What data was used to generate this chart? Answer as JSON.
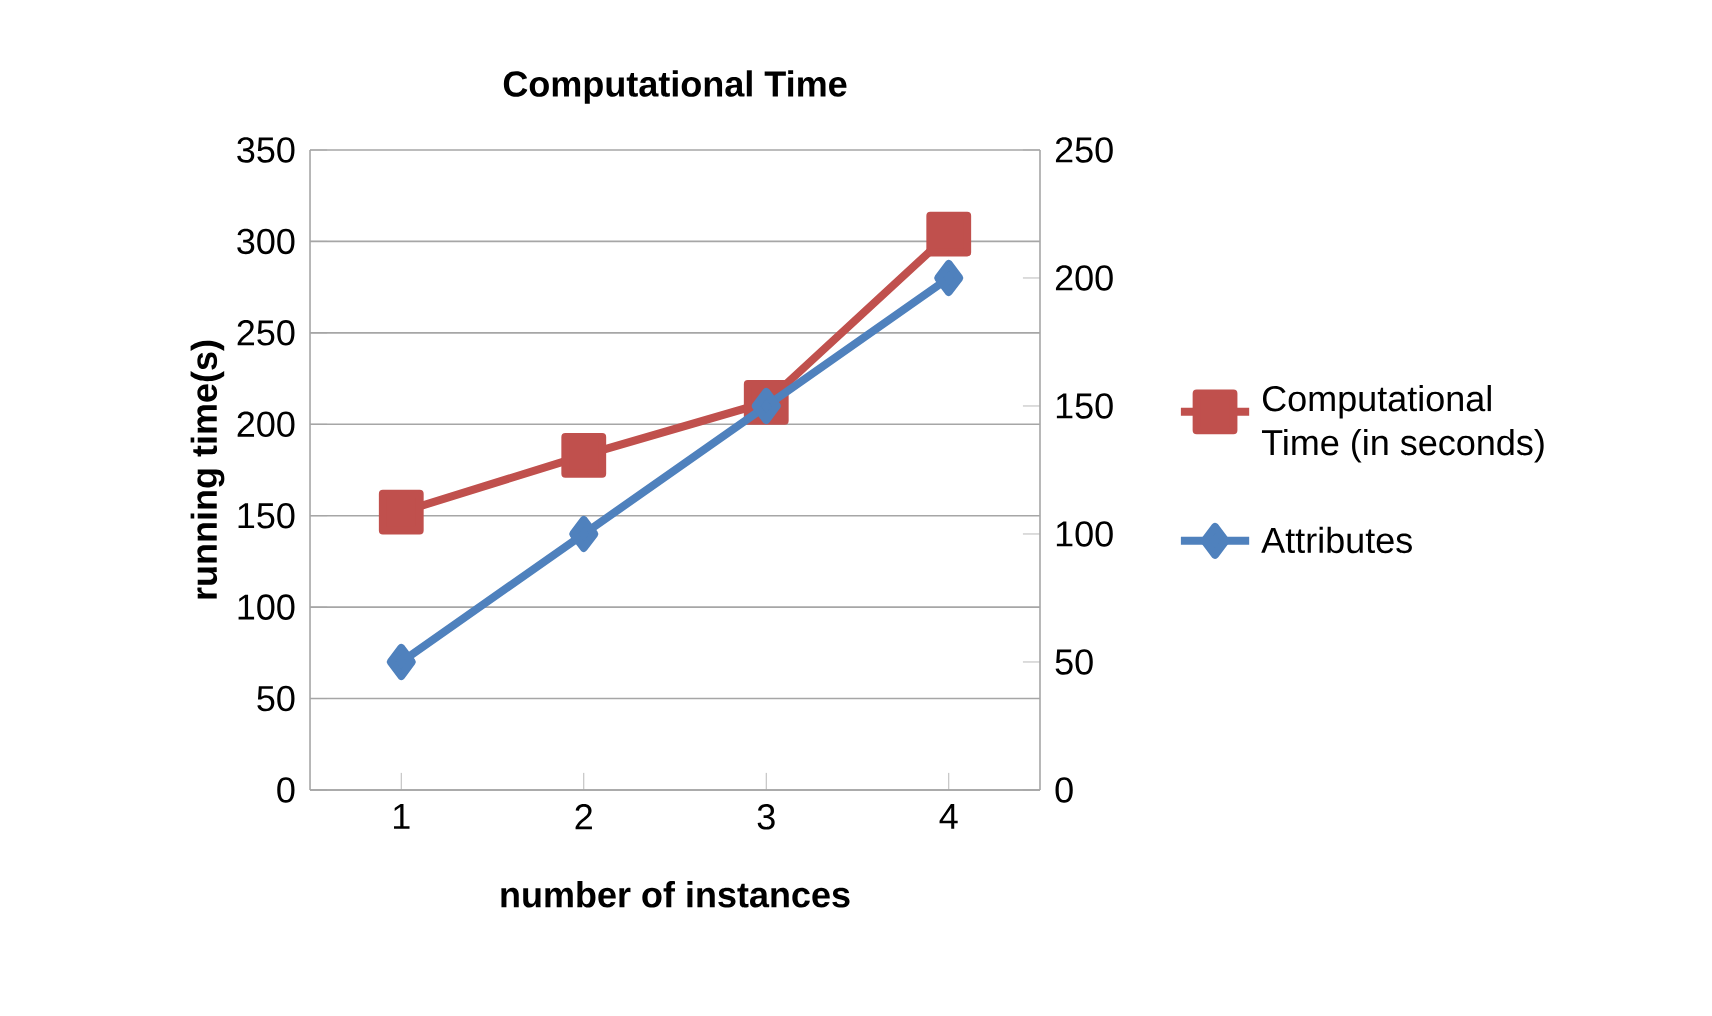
{
  "chart_data": {
    "type": "line",
    "title": "Computational Time",
    "xlabel": "number of instances",
    "ylabel": "running time(s)",
    "categories": [
      "1",
      "2",
      "3",
      "4"
    ],
    "series": [
      {
        "name": "Computational Time (in seconds)",
        "color": "#c0504d",
        "values": [
          152,
          183,
          212,
          304
        ],
        "marker": "square"
      },
      {
        "name": "Attributes",
        "color": "#4f81bd",
        "values": [
          50,
          100,
          150,
          200
        ],
        "marker": "diamond",
        "axis": "y2"
      }
    ],
    "ylim": [
      0,
      350
    ],
    "yticks": [
      0,
      50,
      100,
      150,
      200,
      250,
      300,
      350
    ],
    "y2lim": [
      0,
      250
    ],
    "y2ticks": [
      0,
      50,
      100,
      150,
      200,
      250
    ],
    "grid": "y",
    "legend": "right"
  }
}
